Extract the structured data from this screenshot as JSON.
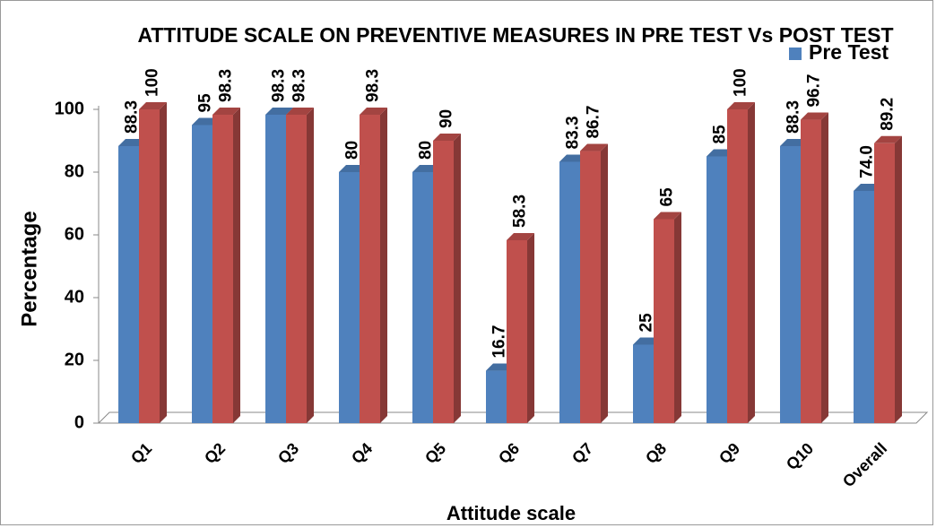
{
  "chart_data": {
    "type": "bar3d",
    "title": "ATTITUDE SCALE ON PREVENTIVE MEASURES IN PRE TEST Vs POST TEST",
    "xlabel": "Attitude scale",
    "ylabel": "Percentage",
    "categories": [
      "Q1",
      "Q2",
      "Q3",
      "Q4",
      "Q5",
      "Q6",
      "Q7",
      "Q8",
      "Q9",
      "Q10",
      "Overall"
    ],
    "series": [
      {
        "name": "Pre Test",
        "color": "#4f81bd",
        "values": [
          88.3,
          95,
          98.3,
          80,
          80,
          16.7,
          83.3,
          25,
          85,
          88.3,
          74.0
        ],
        "value_labels": [
          "88.3",
          "95",
          "98.3",
          "80",
          "80",
          "16.7",
          "83.3",
          "25",
          "85",
          "88.3",
          "74.0"
        ]
      },
      {
        "color": "#c0504d",
        "values": [
          100,
          98.3,
          98.3,
          98.3,
          90,
          58.3,
          86.7,
          65,
          100,
          96.7,
          89.2
        ]
      }
    ],
    "ylim": [
      0,
      100
    ],
    "yticks": [
      0,
      20,
      40,
      60,
      80,
      100
    ],
    "legend": "top-right"
  }
}
